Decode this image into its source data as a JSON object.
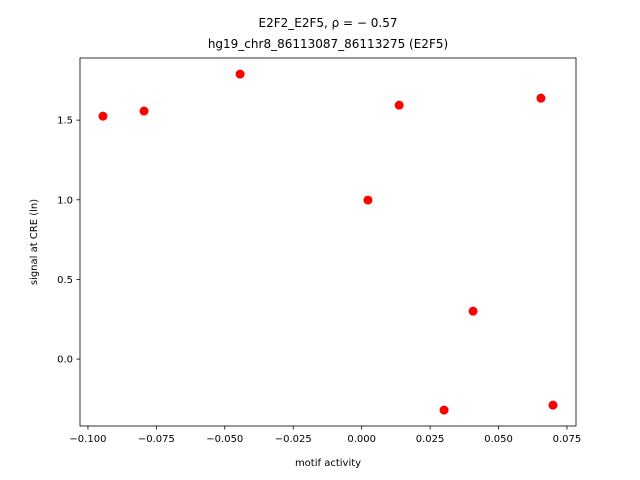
{
  "chart_data": {
    "type": "scatter",
    "title": "E2F2_E2F5, ρ = − 0.57",
    "subtitle": "hg19_chr8_86113087_86113275 (E2F5)",
    "x_label": "motif activity",
    "y_label": "signal at CRE (ln)",
    "color": "#ff0000",
    "x": [
      -0.0945,
      -0.0795,
      -0.0444,
      0.0137,
      0.0023,
      0.0655,
      0.0407,
      0.0301,
      0.0699
    ],
    "values": [
      1.525,
      1.557,
      1.789,
      1.594,
      0.998,
      1.638,
      0.301,
      -0.32,
      -0.289
    ],
    "xlim": [
      -0.1029,
      0.0783
    ],
    "ylim": [
      -0.42,
      1.89
    ],
    "xticks": [
      {
        "value": -0.1,
        "label": "−0.100"
      },
      {
        "value": -0.075,
        "label": "−0.075"
      },
      {
        "value": -0.05,
        "label": "−0.050"
      },
      {
        "value": -0.025,
        "label": "−0.025"
      },
      {
        "value": 0,
        "label": "0.000"
      },
      0.025,
      {
        "value": 0.05,
        "label": "0.050"
      },
      0.075
    ],
    "yticks": [
      {
        "value": 0,
        "label": "0.0"
      },
      0.5,
      {
        "value": 1,
        "label": "1.0"
      },
      1.5
    ]
  }
}
